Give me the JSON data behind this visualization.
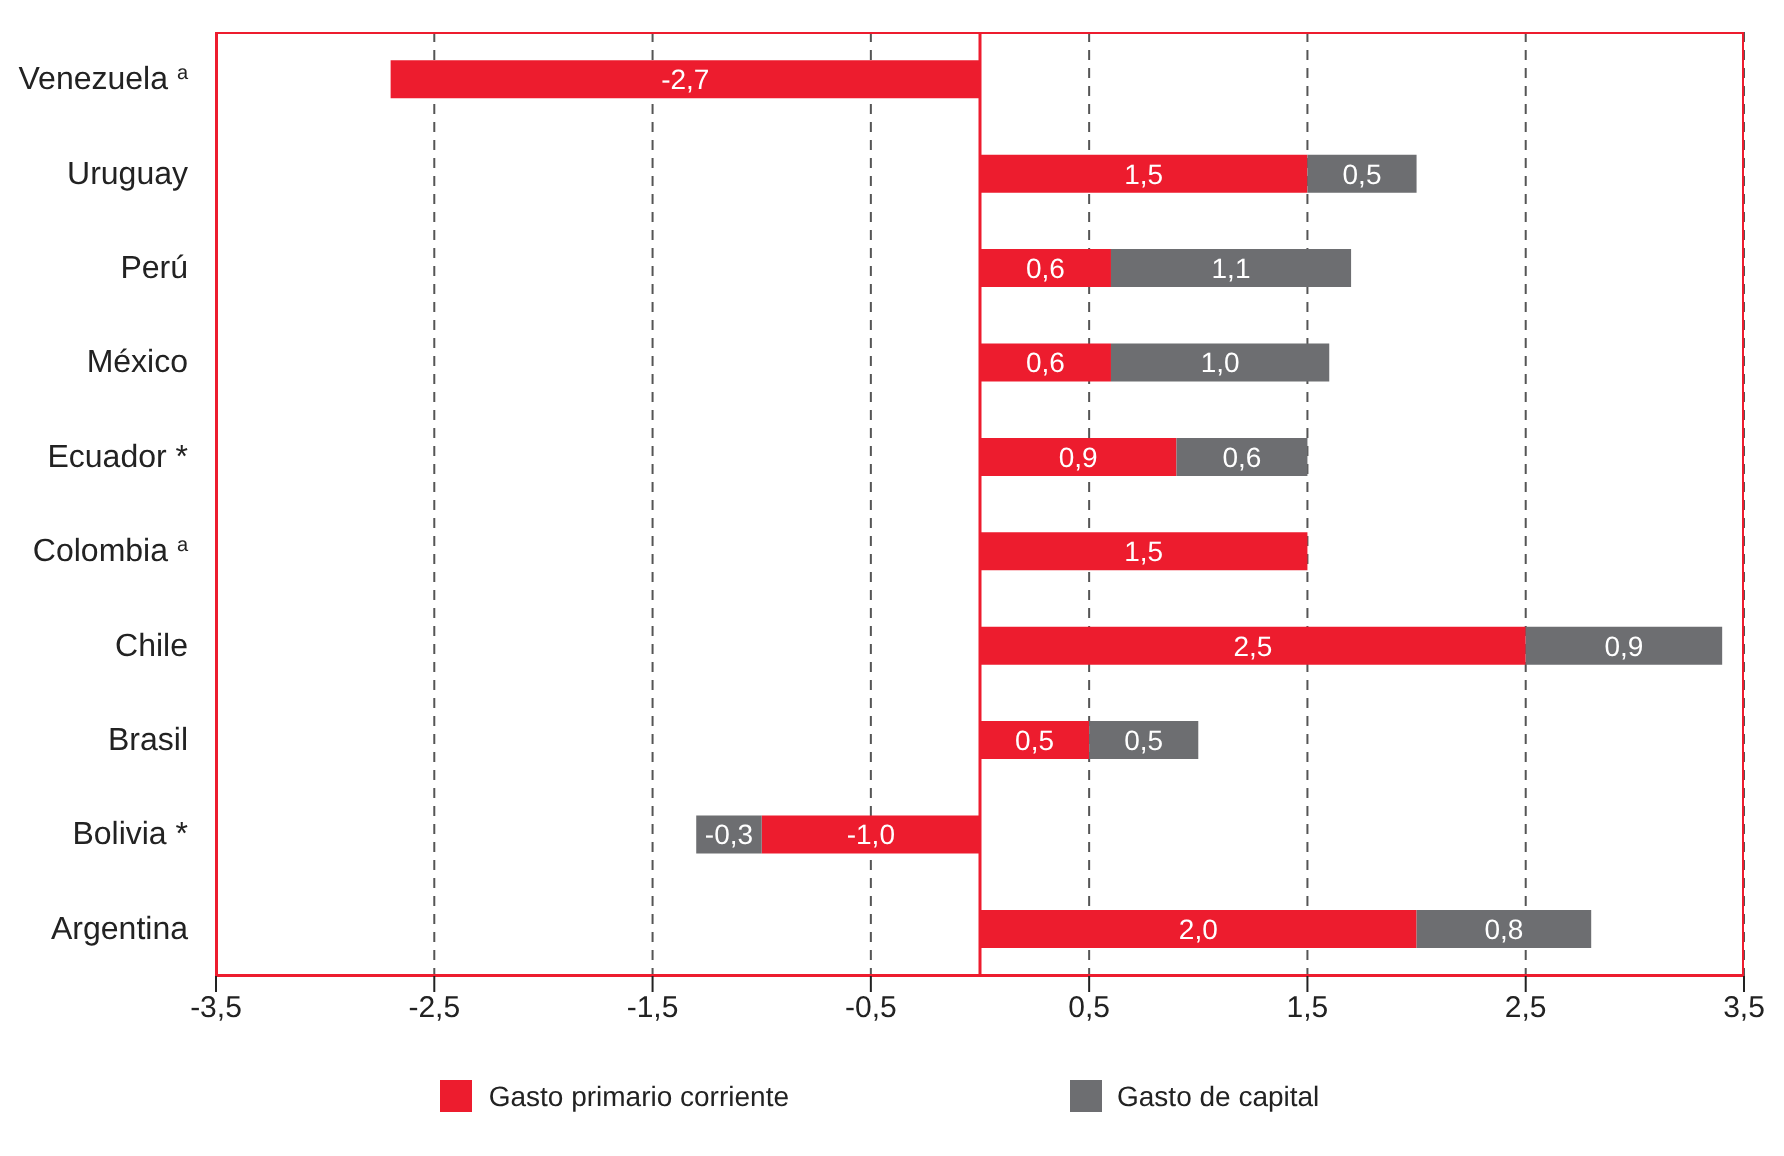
{
  "chart_data": {
    "type": "bar",
    "orientation": "horizontal",
    "stacked": true,
    "categories": [
      "Venezuela $^{a}$",
      "Uruguay",
      "Perú",
      "México",
      "Ecuador *",
      "Colombia $^{a}$",
      "Chile",
      "Brasil",
      "Bolivia *",
      "Argentina"
    ],
    "series": [
      {
        "name": "Gasto primario corriente",
        "color": "#ed1c2e",
        "values": [
          -2.7,
          1.5,
          0.6,
          0.6,
          0.9,
          1.5,
          2.5,
          0.5,
          -1.0,
          2.0
        ],
        "value_labels": [
          "-2,7",
          "1,5",
          "0,6",
          "0,6",
          "0,9",
          "1,5",
          "2,5",
          "0,5",
          "-1,0",
          "2,0"
        ]
      },
      {
        "name": "Gasto de capital",
        "color": "#6d6e71",
        "values": [
          null,
          0.5,
          1.1,
          1.0,
          0.6,
          null,
          0.9,
          0.5,
          -0.3,
          0.8
        ],
        "value_labels": [
          null,
          "0,5",
          "1,1",
          "1,0",
          "0,6",
          null,
          "0,9",
          "0,5",
          "-0,3",
          "0,8"
        ]
      }
    ],
    "xlim": [
      -3.5,
      3.5
    ],
    "xticks": [
      {
        "value": -3.5,
        "label": "-3,5"
      },
      {
        "value": -2.5,
        "label": "-2,5"
      },
      {
        "value": -1.5,
        "label": "-1,5"
      },
      {
        "value": -0.5,
        "label": "-0,5"
      },
      {
        "value": 0.5,
        "label": "0,5"
      },
      {
        "value": 1.5,
        "label": "1,5"
      },
      {
        "value": 2.5,
        "label": "2,5"
      },
      {
        "value": 3.5,
        "label": "3,5"
      }
    ],
    "grid": "x",
    "ref_lines": [
      {
        "axis": "x",
        "value": 0,
        "color": "#ed1c2e",
        "line_style": "solid"
      }
    ],
    "legend": "bottom"
  }
}
